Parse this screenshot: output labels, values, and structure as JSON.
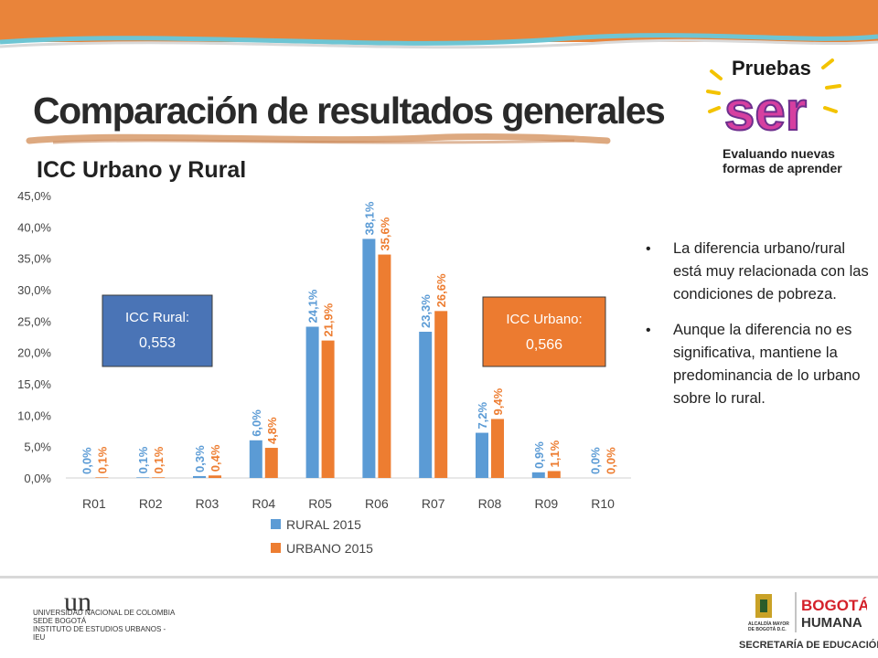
{
  "slide": {
    "title": "Comparación de resultados generales",
    "subtitle": "ICC Urbano y Rural",
    "logo_top": "Pruebas",
    "logo_main": "ser",
    "logo_tagline": "Evaluando nuevas\nformas de aprender",
    "colors": {
      "header": "#e9843a",
      "rural": "#5b9bd5",
      "urbano": "#ed7d31",
      "box_rural": "#4a74b6",
      "box_urbano": "#ec7b30"
    }
  },
  "bullets": [
    "La diferencia urbano/rural está muy relacionada con las condiciones de pobreza.",
    "Aunque la diferencia no es significativa, mantiene la predominancia de lo urbano sobre lo rural."
  ],
  "chart_data": {
    "type": "bar",
    "categories": [
      "R01",
      "R02",
      "R03",
      "R04",
      "R05",
      "R06",
      "R07",
      "R08",
      "R09",
      "R10"
    ],
    "series": [
      {
        "name": "RURAL 2015",
        "values": [
          0.0,
          0.1,
          0.3,
          6.0,
          24.1,
          38.1,
          23.3,
          7.2,
          0.9,
          0.0
        ],
        "labels": [
          "0,0%",
          "0,1%",
          "0,3%",
          "6,0%",
          "24,1%",
          "38,1%",
          "23,3%",
          "7,2%",
          "0,9%",
          "0,0%"
        ],
        "color": "#5b9bd5"
      },
      {
        "name": "URBANO 2015",
        "values": [
          0.1,
          0.1,
          0.4,
          4.8,
          21.9,
          35.6,
          26.6,
          9.4,
          1.1,
          0.0
        ],
        "labels": [
          "0,1%",
          "0,1%",
          "0,4%",
          "4,8%",
          "21,9%",
          "35,6%",
          "26,6%",
          "9,4%",
          "1,1%",
          "0,0%"
        ],
        "color": "#ed7d31"
      }
    ],
    "y_ticks": [
      "0,0%",
      "5,0%",
      "10,0%",
      "15,0%",
      "20,0%",
      "25,0%",
      "30,0%",
      "35,0%",
      "40,0%",
      "45,0%"
    ],
    "ylim": [
      0,
      45
    ],
    "grid": false,
    "legend": "bottom",
    "annotations": [
      {
        "label": "ICC Rural:",
        "value": "0,553",
        "color": "#4a74b6"
      },
      {
        "label": "ICC Urbano:",
        "value": "0,566",
        "color": "#ec7b30"
      }
    ]
  },
  "footer": {
    "unal_logo": "un",
    "unal_text": "UNIVERSIDAD NACIONAL DE COLOMBIA\nSEDE BOGOTÁ\nINSTITUTO DE ESTUDIOS URBANOS - IEU",
    "alcaldia_text": "ALCALDÍA MAYOR\nDE BOGOTÁ D.C.",
    "bogota_logo_1": "BOGOTÁ",
    "bogota_logo_2": "HUMANA",
    "secretaria": "SECRETARÍA DE EDUCACIÓN"
  }
}
